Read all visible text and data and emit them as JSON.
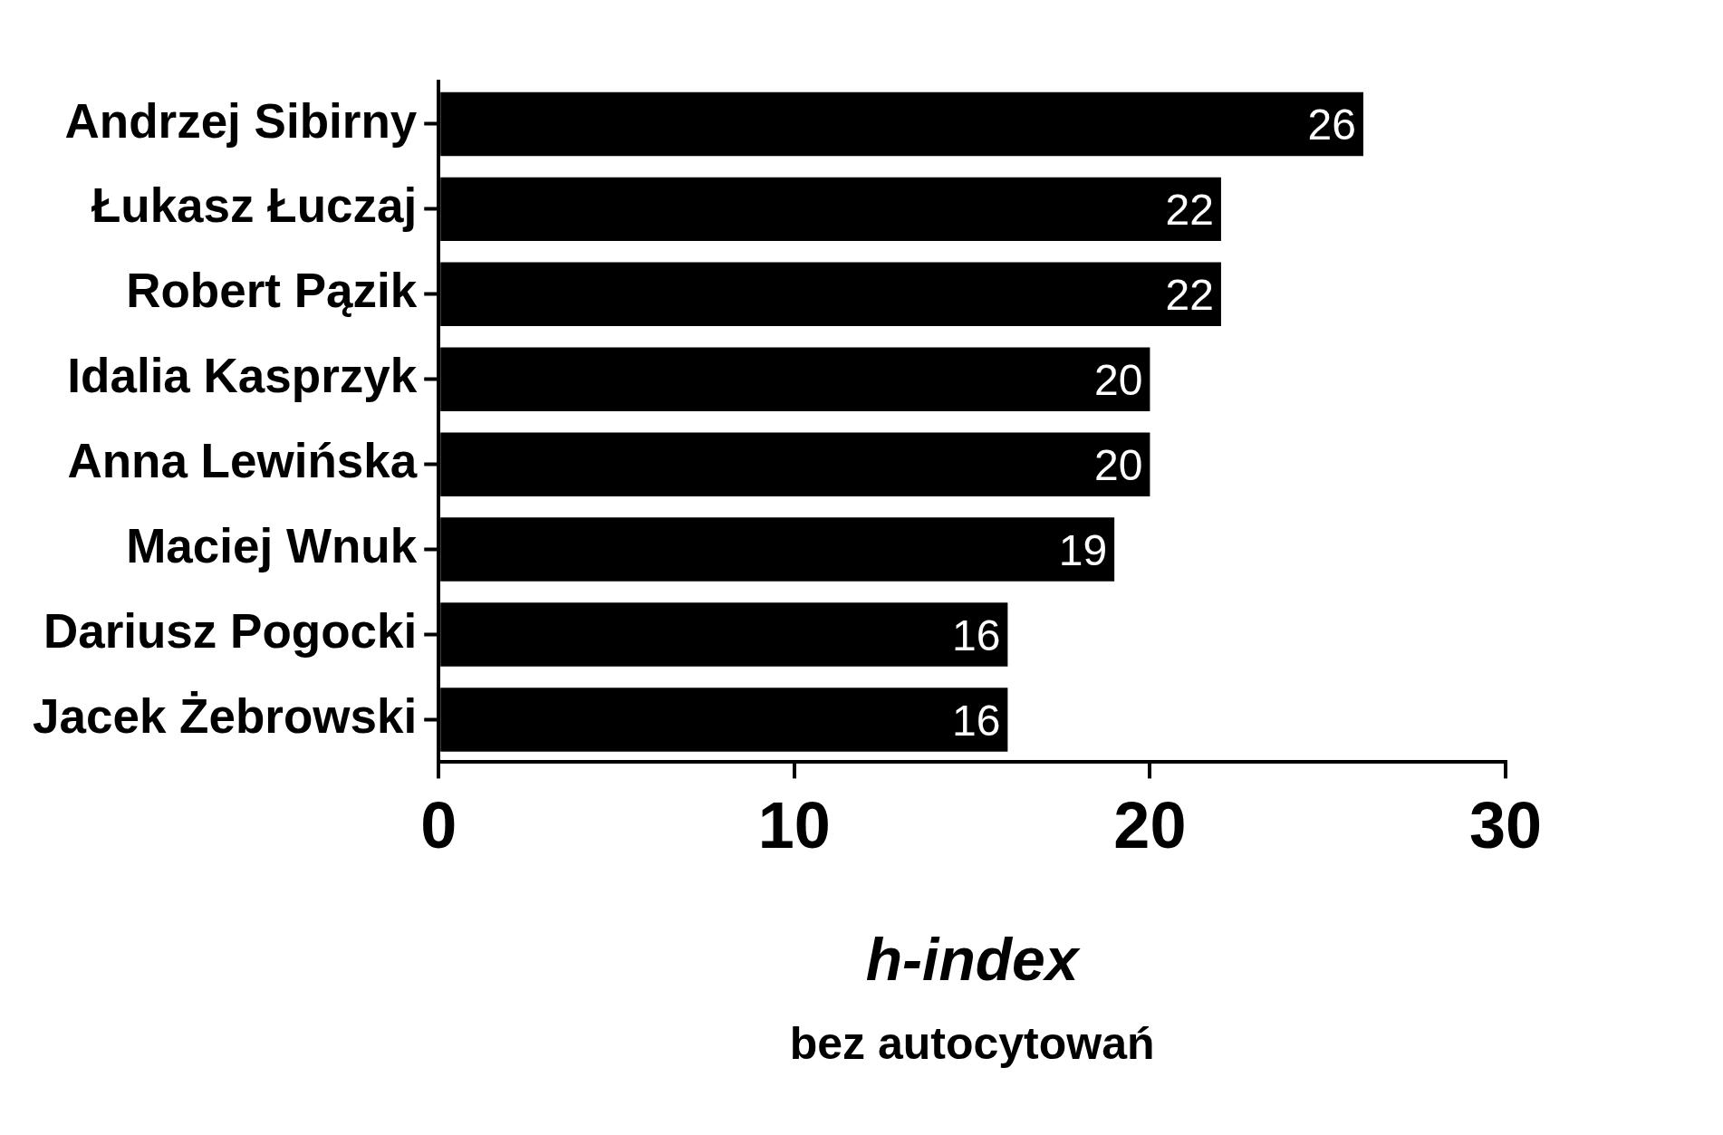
{
  "chart_data": {
    "type": "bar",
    "orientation": "horizontal",
    "xlabel": "h-index",
    "annotations": [
      "bez autocytowań"
    ],
    "categories": [
      "Andrzej Sibirny",
      "Łukasz Łuczaj",
      "Robert Pązik",
      "Idalia Kasprzyk",
      "Anna Lewińska",
      "Maciej Wnuk",
      "Dariusz Pogocki",
      "Jacek Żebrowski"
    ],
    "values": [
      26,
      22,
      22,
      20,
      20,
      19,
      16,
      16
    ],
    "color": "#000000",
    "xlim": [
      0,
      30
    ],
    "xticks": [
      0,
      10,
      20,
      30
    ],
    "data_labels": true,
    "grid": false,
    "legend": false
  }
}
